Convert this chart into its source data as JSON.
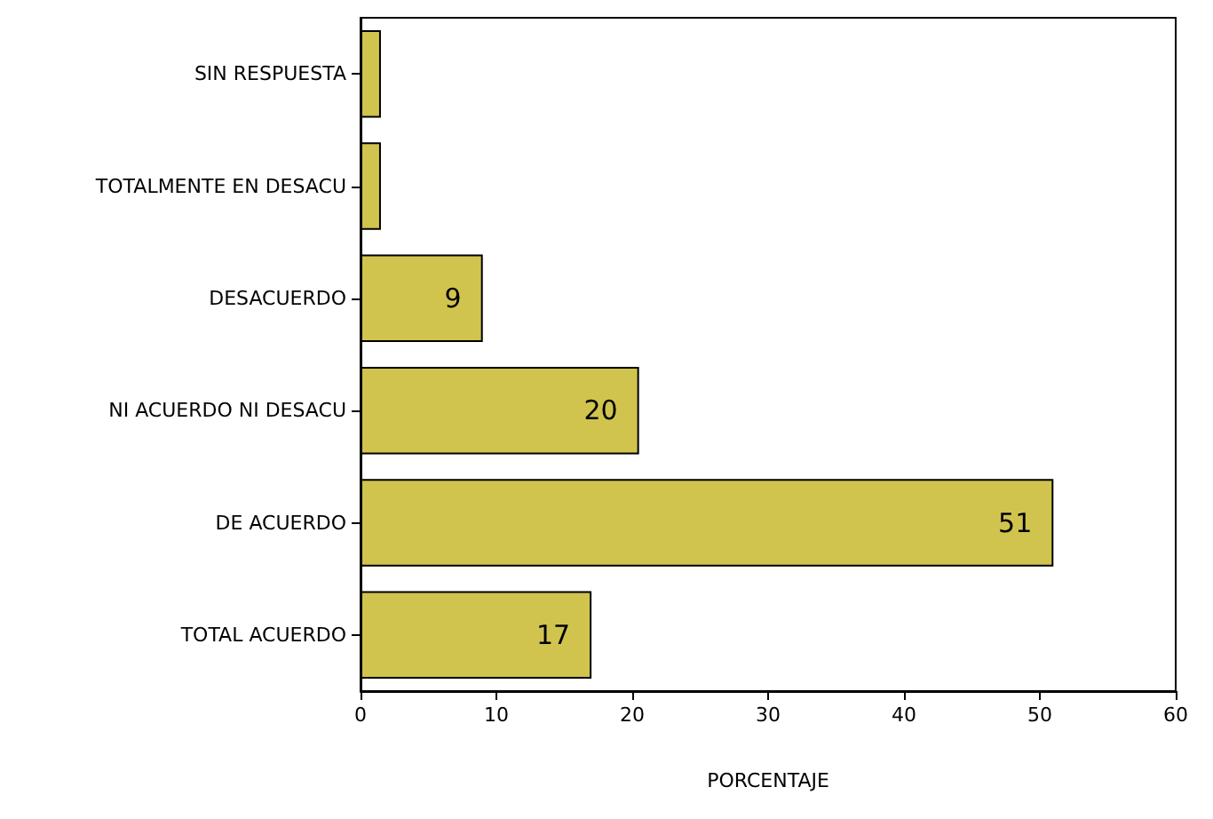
{
  "chart_data": {
    "type": "bar",
    "orientation": "horizontal",
    "xlabel": "PORCENTAJE",
    "categories": [
      "SIN RESPUESTA",
      "TOTALMENTE EN DESACU",
      "DESACUERDO",
      "NI ACUERDO NI DESACU",
      "DE ACUERDO",
      "TOTAL ACUERDO"
    ],
    "values": [
      1.5,
      1.5,
      9,
      20.5,
      51,
      17
    ],
    "value_labels": [
      null,
      null,
      "9",
      "20",
      "51",
      "17"
    ],
    "color": "#d0c44f",
    "xlim": [
      0,
      60
    ],
    "xticks": [
      0,
      10,
      20,
      30,
      40,
      50,
      60
    ],
    "grid": false
  }
}
